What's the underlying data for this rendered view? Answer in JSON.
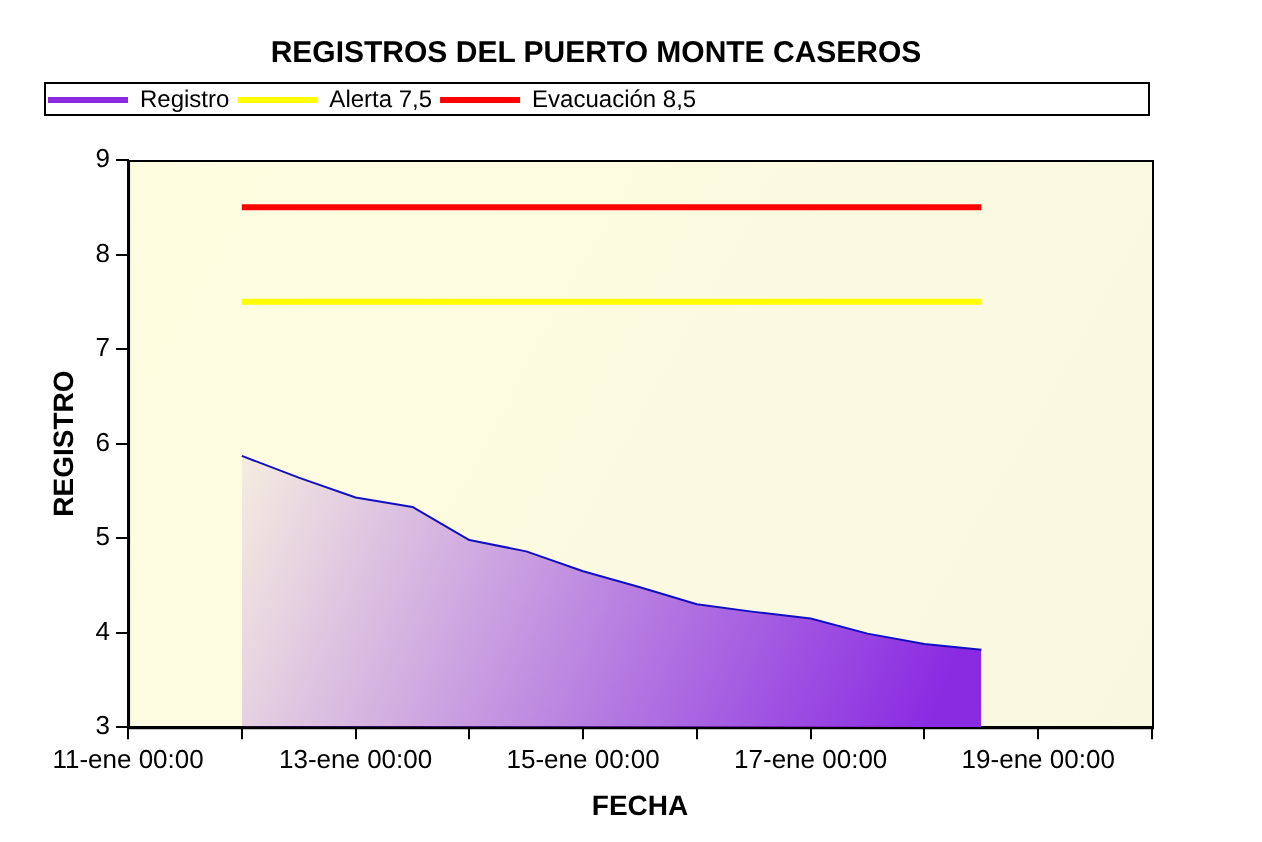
{
  "chart_data": {
    "type": "area",
    "title": "REGISTROS DEL PUERTO MONTE CASEROS",
    "xlabel": "FECHA",
    "ylabel": "REGISTRO",
    "xlim": [
      "--01-11T00:00",
      "--01-20T00:00"
    ],
    "xticks": [
      {
        "value": "--01-11T00:00",
        "label": "11-ene 00:00"
      },
      {
        "value": "--01-12T00:00",
        "label": null
      },
      {
        "value": "--01-13T00:00",
        "label": "13-ene 00:00"
      },
      {
        "value": "--01-14T00:00",
        "label": null
      },
      {
        "value": "--01-15T00:00",
        "label": "15-ene 00:00"
      },
      {
        "value": "--01-16T00:00",
        "label": null
      },
      {
        "value": "--01-17T00:00",
        "label": "17-ene 00:00"
      },
      {
        "value": "--01-18T00:00",
        "label": null
      },
      {
        "value": "--01-19T00:00",
        "label": "19-ene 00:00"
      },
      {
        "value": "--01-20T00:00",
        "label": null
      }
    ],
    "ylim": [
      3,
      9
    ],
    "yticks": [
      3,
      4,
      5,
      6,
      7,
      8,
      9
    ],
    "grid": false,
    "legend": "top",
    "series": [
      {
        "name": "Registro",
        "color": "#8a2be2",
        "x": [
          "--01-12T00:00",
          "--01-12T12:00",
          "--01-13T00:00",
          "--01-13T12:00",
          "--01-14T00:00",
          "--01-14T12:00",
          "--01-15T00:00",
          "--01-15T12:00",
          "--01-16T00:00",
          "--01-16T12:00",
          "--01-17T00:00",
          "--01-17T12:00",
          "--01-18T00:00",
          "--01-18T12:00"
        ],
        "values": [
          5.87,
          5.64,
          5.43,
          5.33,
          4.98,
          4.86,
          4.65,
          4.48,
          4.3,
          4.22,
          4.15,
          3.99,
          3.88,
          3.82
        ]
      },
      {
        "name": "Alerta 7,5",
        "type": "line",
        "color": "#ffff00",
        "x": [
          "--01-12T00:00",
          "--01-18T12:00"
        ],
        "values": [
          7.5,
          7.5
        ]
      },
      {
        "name": "Evacuación 8,5",
        "type": "line",
        "color": "#ff0000",
        "x": [
          "--01-12T00:00",
          "--01-18T12:00"
        ],
        "values": [
          8.5,
          8.5
        ]
      }
    ]
  }
}
